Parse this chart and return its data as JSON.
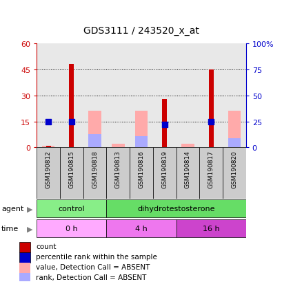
{
  "title": "GDS3111 / 243520_x_at",
  "samples": [
    "GSM190812",
    "GSM190815",
    "GSM190818",
    "GSM190813",
    "GSM190816",
    "GSM190819",
    "GSM190814",
    "GSM190817",
    "GSM190820"
  ],
  "count_red": [
    1,
    48,
    0,
    0,
    0,
    28,
    0,
    45,
    0
  ],
  "percentile_blue": [
    25,
    25,
    0,
    0,
    0,
    22,
    0,
    25,
    0
  ],
  "absent_value_pink": [
    1,
    0,
    21,
    2,
    21,
    0,
    2,
    0,
    21
  ],
  "absent_rank_leftscale": [
    0,
    0,
    13,
    0,
    11,
    0,
    0,
    0,
    9
  ],
  "ylim_left": [
    0,
    60
  ],
  "ylim_right": [
    0,
    100
  ],
  "yticks_left": [
    0,
    15,
    30,
    45,
    60
  ],
  "yticks_right": [
    0,
    25,
    50,
    75,
    100
  ],
  "ytick_labels_left": [
    "0",
    "15",
    "30",
    "45",
    "60"
  ],
  "ytick_labels_right": [
    "0",
    "25",
    "50",
    "75",
    "100%"
  ],
  "color_red": "#cc0000",
  "color_blue": "#0000cc",
  "color_pink": "#ffaaaa",
  "color_lightblue": "#aaaaff",
  "agent_groups": [
    {
      "label": "control",
      "start": 0,
      "end": 3,
      "color": "#88ee88"
    },
    {
      "label": "dihydrotestosterone",
      "start": 3,
      "end": 9,
      "color": "#66dd66"
    }
  ],
  "time_groups": [
    {
      "label": "0 h",
      "start": 0,
      "end": 3,
      "color": "#ffaaff"
    },
    {
      "label": "4 h",
      "start": 3,
      "end": 6,
      "color": "#ee77ee"
    },
    {
      "label": "16 h",
      "start": 6,
      "end": 9,
      "color": "#cc44cc"
    }
  ],
  "legend_items": [
    {
      "label": "count",
      "color": "#cc0000"
    },
    {
      "label": "percentile rank within the sample",
      "color": "#0000cc"
    },
    {
      "label": "value, Detection Call = ABSENT",
      "color": "#ffaaaa"
    },
    {
      "label": "rank, Detection Call = ABSENT",
      "color": "#aaaaff"
    }
  ],
  "bar_width": 0.55,
  "red_bar_width": 0.2,
  "background_color": "#ffffff",
  "plot_bg_color": "#e8e8e8",
  "xtick_bg_color": "#cccccc"
}
